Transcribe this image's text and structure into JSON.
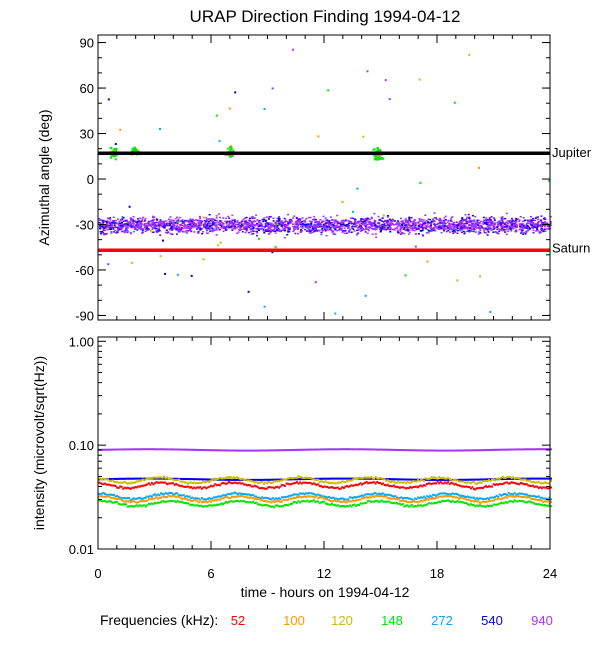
{
  "chart_data": {
    "type": "scatter",
    "title": "URAP Direction Finding  1994-04-12",
    "x": {
      "label": "time - hours on 1994-04-12",
      "range": [
        0,
        24
      ],
      "ticks": [
        "0",
        "6",
        "12",
        "18",
        "24"
      ]
    },
    "legend": {
      "label": "Frequencies (kHz):",
      "placement": "bottom",
      "entries": [
        {
          "name": "52",
          "color": "#ff0000"
        },
        {
          "name": "100",
          "color": "#ff9900"
        },
        {
          "name": "120",
          "color": "#ccbb00"
        },
        {
          "name": "148",
          "color": "#00e600"
        },
        {
          "name": "272",
          "color": "#00aaff"
        },
        {
          "name": "540",
          "color": "#0000ee"
        },
        {
          "name": "940",
          "color": "#aa33ff"
        }
      ]
    },
    "panels": [
      {
        "name": "azimuth",
        "ylabel": "Azimuthal angle (deg)",
        "yrange": [
          -93,
          95
        ],
        "yticks": [
          "90",
          "60",
          "30",
          "0",
          "-30",
          "-60",
          "-90"
        ],
        "reference_lines": [
          {
            "label": "Jupiter",
            "value": 17,
            "color": "#000000"
          },
          {
            "label": "Saturn",
            "value": -47,
            "color": "#ff0000"
          }
        ],
        "series": [
          {
            "name": "940 kHz band",
            "color": "#aa33ff",
            "x_range": [
              0,
              24
            ],
            "center": -30,
            "spread": 8
          },
          {
            "name": "540 kHz band",
            "color": "#0000ee",
            "x_range": [
              0,
              24
            ],
            "center": -30,
            "spread": 10
          },
          {
            "name": "148 kHz Jupiter clusters",
            "color": "#00e600",
            "clusters": [
              [
                0.8,
                18
              ],
              [
                1.9,
                19
              ],
              [
                7.0,
                18
              ],
              [
                14.8,
                17
              ]
            ]
          }
        ]
      },
      {
        "name": "intensity",
        "ylabel": "intensity (microvolt/sqrt(Hz))",
        "scale": "log",
        "yrange": [
          0.01,
          1.1
        ],
        "yticks": [
          "1.00",
          "0.10",
          "0.01"
        ],
        "series": [
          {
            "name": "940",
            "color": "#aa33ff",
            "level": 0.092
          },
          {
            "name": "540",
            "color": "#0000ee",
            "level": 0.048
          },
          {
            "name": "120",
            "color": "#ccbb00",
            "level": 0.047
          },
          {
            "name": "52",
            "color": "#ff0000",
            "level": 0.042
          },
          {
            "name": "272",
            "color": "#00aaff",
            "level": 0.033
          },
          {
            "name": "100",
            "color": "#ff9900",
            "level": 0.031
          },
          {
            "name": "148",
            "color": "#00e600",
            "level": 0.028
          }
        ]
      }
    ]
  }
}
